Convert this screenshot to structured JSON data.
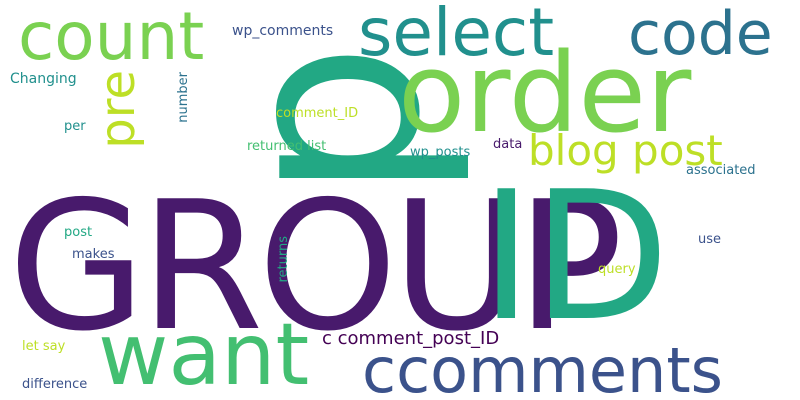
{
  "word_cloud": {
    "background": "#ffffff",
    "palette": {
      "dark_purple": "#440154",
      "indigo": "#481a6c",
      "blue": "#3b528b",
      "teal_blue": "#2c728e",
      "teal": "#21908d",
      "green_teal": "#22a884",
      "green": "#43bf71",
      "light_green": "#7ad151",
      "yellow_green": "#bddf26"
    },
    "words": [
      {
        "text": "GROUP",
        "weight": 100,
        "orientation": "horizontal",
        "color": "#481a6c"
      },
      {
        "text": "ID",
        "weight": 98,
        "orientation": "horizontal",
        "color": "#22a884"
      },
      {
        "text": "p",
        "weight": 95,
        "orientation": "vertical",
        "color": "#22a884"
      },
      {
        "text": "order",
        "weight": 82,
        "orientation": "horizontal",
        "color": "#7ad151"
      },
      {
        "text": "want",
        "weight": 60,
        "orientation": "horizontal",
        "color": "#43bf71"
      },
      {
        "text": "count",
        "weight": 48,
        "orientation": "horizontal",
        "color": "#7ad151"
      },
      {
        "text": "select",
        "weight": 48,
        "orientation": "horizontal",
        "color": "#21908d"
      },
      {
        "text": "code",
        "weight": 46,
        "orientation": "horizontal",
        "color": "#2c728e"
      },
      {
        "text": "ccomments",
        "weight": 46,
        "orientation": "horizontal",
        "color": "#3b528b"
      },
      {
        "text": "pre",
        "weight": 36,
        "orientation": "vertical",
        "color": "#bddf26"
      },
      {
        "text": "blog post",
        "weight": 32,
        "orientation": "horizontal",
        "color": "#bddf26"
      },
      {
        "text": "c comment_post_ID",
        "weight": 14,
        "orientation": "horizontal",
        "color": "#440154"
      },
      {
        "text": "wp_comments",
        "weight": 11,
        "orientation": "horizontal",
        "color": "#3b528b"
      },
      {
        "text": "Changing",
        "weight": 11,
        "orientation": "horizontal",
        "color": "#21908d"
      },
      {
        "text": "number",
        "weight": 10,
        "orientation": "vertical",
        "color": "#2c728e"
      },
      {
        "text": "comment_ID",
        "weight": 10,
        "orientation": "horizontal",
        "color": "#bddf26"
      },
      {
        "text": "per",
        "weight": 10,
        "orientation": "horizontal",
        "color": "#21908d"
      },
      {
        "text": "returned list",
        "weight": 10,
        "orientation": "horizontal",
        "color": "#43bf71"
      },
      {
        "text": "data",
        "weight": 10,
        "orientation": "horizontal",
        "color": "#481a6c"
      },
      {
        "text": "wp_posts",
        "weight": 10,
        "orientation": "horizontal",
        "color": "#21908d"
      },
      {
        "text": "associated",
        "weight": 10,
        "orientation": "horizontal",
        "color": "#2c728e"
      },
      {
        "text": "post",
        "weight": 10,
        "orientation": "horizontal",
        "color": "#22a884"
      },
      {
        "text": "use",
        "weight": 10,
        "orientation": "horizontal",
        "color": "#3b528b"
      },
      {
        "text": "makes",
        "weight": 10,
        "orientation": "horizontal",
        "color": "#3b528b"
      },
      {
        "text": "returns",
        "weight": 10,
        "orientation": "vertical",
        "color": "#22a884"
      },
      {
        "text": "query",
        "weight": 10,
        "orientation": "horizontal",
        "color": "#bddf26"
      },
      {
        "text": "let say",
        "weight": 10,
        "orientation": "horizontal",
        "color": "#bddf26"
      },
      {
        "text": "difference",
        "weight": 10,
        "orientation": "horizontal",
        "color": "#3b528b"
      }
    ]
  }
}
